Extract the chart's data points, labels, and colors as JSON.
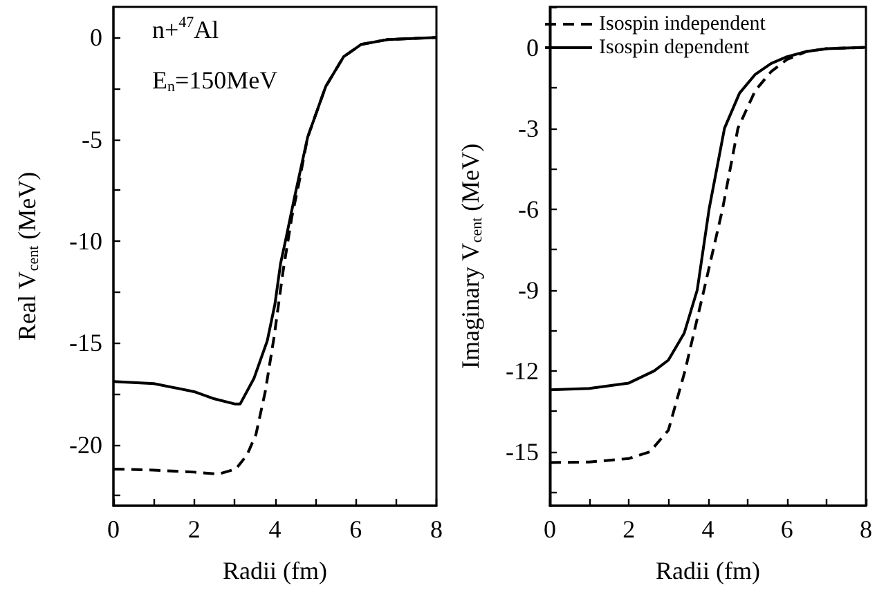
{
  "chart_data": [
    {
      "type": "line",
      "xlabel": "Radii (fm)",
      "ylabel": "Real V$_{cent}$ (MeV)",
      "annotations": [
        "n+$^{47}$Al",
        "E$_{n}$=150MeV"
      ],
      "xlim": [
        0,
        8
      ],
      "ylim": [
        -23,
        1.5
      ],
      "xticks": [
        0,
        {
          "value": 1,
          "label": null
        },
        2,
        {
          "value": 3,
          "label": null
        },
        4,
        {
          "value": 5,
          "label": null
        },
        6,
        {
          "value": 7,
          "label": null
        },
        8
      ],
      "yticks": [
        {
          "value": -22.5,
          "label": null
        },
        -20,
        {
          "value": -17.5,
          "label": null
        },
        -15,
        {
          "value": -12.5,
          "label": null
        },
        -10,
        {
          "value": -7.5,
          "label": null
        },
        -5,
        {
          "value": -2.5,
          "label": null
        },
        0
      ],
      "grid": false,
      "legend": false,
      "marker": "none",
      "series": [
        {
          "color": "#000000",
          "line_style": "dashed",
          "x": [
            0,
            1,
            2,
            2.6,
            3.03,
            3.31,
            3.53,
            3.76,
            3.98,
            4.2,
            4.42,
            4.59,
            4.81,
            5.26,
            5.7,
            6.14,
            6.8,
            8
          ],
          "values": [
            -21.2,
            -21.25,
            -21.35,
            -21.45,
            -21.2,
            -20.5,
            -19.5,
            -17.4,
            -14.7,
            -11.5,
            -8.8,
            -7.2,
            -4.9,
            -2.4,
            -0.95,
            -0.34,
            -0.1,
            0
          ]
        },
        {
          "color": "#000000",
          "line_style": "solid",
          "x": [
            0,
            1,
            2,
            2.5,
            3.0,
            3.14,
            3.48,
            3.81,
            4.0,
            4.14,
            4.26,
            4.48,
            4.81,
            5.26,
            5.7,
            6.14,
            6.8,
            8
          ],
          "values": [
            -16.9,
            -17.0,
            -17.4,
            -17.75,
            -18.0,
            -18.0,
            -16.75,
            -14.9,
            -13.1,
            -11.1,
            -10.0,
            -7.9,
            -4.9,
            -2.4,
            -0.95,
            -0.34,
            -0.1,
            0
          ]
        }
      ]
    },
    {
      "type": "line",
      "xlabel": "Radii (fm)",
      "ylabel": "Imaginary V$_{cent}$ (MeV)",
      "xlim": [
        0,
        8
      ],
      "ylim": [
        -17,
        1.5
      ],
      "xticks": [
        0,
        {
          "value": 1,
          "label": null
        },
        2,
        {
          "value": 3,
          "label": null
        },
        4,
        {
          "value": 5,
          "label": null
        },
        6,
        {
          "value": 7,
          "label": null
        },
        8
      ],
      "yticks": [
        {
          "value": -16.5,
          "label": null
        },
        -15,
        {
          "value": -13.5,
          "label": null
        },
        -12,
        {
          "value": -10.5,
          "label": null
        },
        -9,
        {
          "value": -7.5,
          "label": null
        },
        -6,
        {
          "value": -4.5,
          "label": null
        },
        -3,
        {
          "value": -1.5,
          "label": null
        },
        0,
        {
          "value": 1.5,
          "label": null
        }
      ],
      "grid": false,
      "legend": "top left",
      "marker": "none",
      "series": [
        {
          "name": "Isospin independent",
          "color": "#000000",
          "line_style": "dashed",
          "x": [
            0,
            1,
            2,
            2.53,
            3,
            3.42,
            3.9,
            4.37,
            4.76,
            5.2,
            5.6,
            6,
            6.5,
            7,
            8
          ],
          "values": [
            -15.4,
            -15.38,
            -15.25,
            -15,
            -14.2,
            -12,
            -9,
            -6,
            -3,
            -1.6,
            -0.9,
            -0.45,
            -0.15,
            -0.05,
            0
          ]
        },
        {
          "name": "Isospin dependent",
          "color": "#000000",
          "line_style": "solid",
          "x": [
            0,
            1,
            2,
            2.64,
            3,
            3.4,
            3.73,
            4.03,
            4.42,
            4.8,
            5.2,
            5.6,
            6,
            6.5,
            7,
            8
          ],
          "values": [
            -12.7,
            -12.65,
            -12.45,
            -12,
            -11.6,
            -10.6,
            -9,
            -6,
            -3,
            -1.7,
            -1.0,
            -0.6,
            -0.35,
            -0.15,
            -0.05,
            0
          ]
        }
      ]
    }
  ]
}
